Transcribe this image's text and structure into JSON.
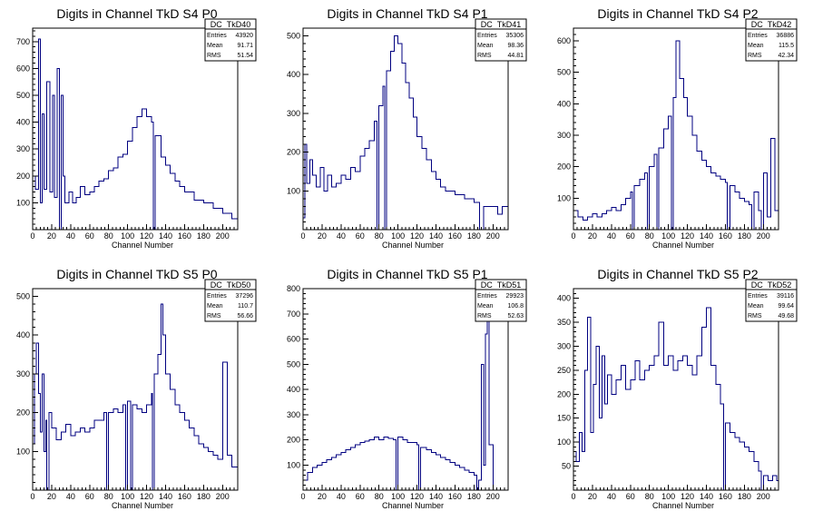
{
  "chart_data": [
    {
      "type": "histogram",
      "title": "Digits in Channel TkD S4 P0",
      "xlabel": "Channel Number",
      "xlim": [
        0,
        216
      ],
      "ylim": [
        0,
        750
      ],
      "x_ticks": [
        0,
        20,
        40,
        60,
        80,
        100,
        120,
        140,
        160,
        180,
        200
      ],
      "y_ticks": [
        100,
        200,
        300,
        400,
        500,
        600,
        700
      ],
      "stats": {
        "name": "DC_TkD40",
        "entries_label": "Entries",
        "entries": "43920",
        "mean_label": "Mean",
        "mean": "91.71",
        "rms_label": "RMS",
        "rms": "51.54"
      },
      "color": "#000080",
      "points": [
        [
          0,
          200
        ],
        [
          3,
          150
        ],
        [
          6,
          710
        ],
        [
          8,
          100
        ],
        [
          10,
          430
        ],
        [
          12,
          150
        ],
        [
          15,
          550
        ],
        [
          18,
          140
        ],
        [
          21,
          500
        ],
        [
          23,
          120
        ],
        [
          26,
          600
        ],
        [
          28,
          0
        ],
        [
          30,
          500
        ],
        [
          32,
          200
        ],
        [
          34,
          100
        ],
        [
          38,
          140
        ],
        [
          42,
          100
        ],
        [
          46,
          120
        ],
        [
          50,
          160
        ],
        [
          55,
          130
        ],
        [
          60,
          140
        ],
        [
          65,
          160
        ],
        [
          70,
          180
        ],
        [
          75,
          190
        ],
        [
          80,
          220
        ],
        [
          85,
          230
        ],
        [
          90,
          270
        ],
        [
          95,
          280
        ],
        [
          100,
          330
        ],
        [
          105,
          380
        ],
        [
          110,
          420
        ],
        [
          115,
          450
        ],
        [
          120,
          420
        ],
        [
          125,
          400
        ],
        [
          127,
          0
        ],
        [
          129,
          350
        ],
        [
          135,
          270
        ],
        [
          140,
          240
        ],
        [
          145,
          210
        ],
        [
          150,
          180
        ],
        [
          155,
          160
        ],
        [
          160,
          140
        ],
        [
          170,
          110
        ],
        [
          180,
          100
        ],
        [
          190,
          80
        ],
        [
          200,
          60
        ],
        [
          210,
          40
        ],
        [
          216,
          50
        ]
      ]
    },
    {
      "type": "histogram",
      "title": "Digits in Channel TkD S4 P1",
      "xlabel": "Channel Number",
      "xlim": [
        0,
        216
      ],
      "ylim": [
        0,
        520
      ],
      "x_ticks": [
        0,
        20,
        40,
        60,
        80,
        100,
        120,
        140,
        160,
        180,
        200
      ],
      "y_ticks": [
        100,
        200,
        300,
        400,
        500
      ],
      "stats": {
        "name": "DC_TkD41",
        "entries_label": "Entries",
        "entries": "35306",
        "mean_label": "Mean",
        "mean": "98.36",
        "rms_label": "RMS",
        "rms": "44.81"
      },
      "color": "#000080",
      "points": [
        [
          0,
          30
        ],
        [
          2,
          220
        ],
        [
          4,
          120
        ],
        [
          7,
          180
        ],
        [
          10,
          140
        ],
        [
          14,
          110
        ],
        [
          18,
          160
        ],
        [
          22,
          100
        ],
        [
          26,
          140
        ],
        [
          30,
          110
        ],
        [
          35,
          120
        ],
        [
          40,
          140
        ],
        [
          45,
          130
        ],
        [
          50,
          160
        ],
        [
          55,
          150
        ],
        [
          60,
          190
        ],
        [
          65,
          210
        ],
        [
          70,
          230
        ],
        [
          75,
          280
        ],
        [
          78,
          0
        ],
        [
          80,
          320
        ],
        [
          84,
          370
        ],
        [
          86,
          0
        ],
        [
          88,
          410
        ],
        [
          92,
          460
        ],
        [
          96,
          500
        ],
        [
          100,
          480
        ],
        [
          104,
          430
        ],
        [
          108,
          380
        ],
        [
          112,
          340
        ],
        [
          116,
          290
        ],
        [
          120,
          240
        ],
        [
          125,
          210
        ],
        [
          130,
          180
        ],
        [
          135,
          150
        ],
        [
          140,
          130
        ],
        [
          145,
          110
        ],
        [
          150,
          100
        ],
        [
          160,
          90
        ],
        [
          170,
          80
        ],
        [
          180,
          70
        ],
        [
          186,
          0
        ],
        [
          190,
          60
        ],
        [
          200,
          60
        ],
        [
          205,
          40
        ],
        [
          210,
          60
        ],
        [
          216,
          50
        ]
      ]
    },
    {
      "type": "histogram",
      "title": "Digits in Channel TkD S4 P2",
      "xlabel": "Channel Number",
      "xlim": [
        0,
        216
      ],
      "ylim": [
        0,
        640
      ],
      "x_ticks": [
        0,
        20,
        40,
        60,
        80,
        100,
        120,
        140,
        160,
        180,
        200
      ],
      "y_ticks": [
        100,
        200,
        300,
        400,
        500,
        600
      ],
      "stats": {
        "name": "DC_TkD42",
        "entries_label": "Entries",
        "entries": "36886",
        "mean_label": "Mean",
        "mean": "115.5",
        "rms_label": "RMS",
        "rms": "42.34"
      },
      "color": "#000080",
      "points": [
        [
          0,
          60
        ],
        [
          5,
          40
        ],
        [
          10,
          30
        ],
        [
          15,
          40
        ],
        [
          20,
          50
        ],
        [
          25,
          40
        ],
        [
          30,
          50
        ],
        [
          35,
          60
        ],
        [
          40,
          70
        ],
        [
          45,
          60
        ],
        [
          50,
          80
        ],
        [
          55,
          100
        ],
        [
          60,
          120
        ],
        [
          62,
          0
        ],
        [
          64,
          140
        ],
        [
          70,
          160
        ],
        [
          75,
          180
        ],
        [
          78,
          0
        ],
        [
          80,
          200
        ],
        [
          85,
          240
        ],
        [
          88,
          0
        ],
        [
          90,
          260
        ],
        [
          95,
          320
        ],
        [
          100,
          360
        ],
        [
          103,
          0
        ],
        [
          105,
          420
        ],
        [
          108,
          600
        ],
        [
          112,
          480
        ],
        [
          116,
          420
        ],
        [
          120,
          360
        ],
        [
          125,
          300
        ],
        [
          130,
          250
        ],
        [
          135,
          220
        ],
        [
          140,
          200
        ],
        [
          145,
          180
        ],
        [
          150,
          170
        ],
        [
          155,
          160
        ],
        [
          160,
          150
        ],
        [
          162,
          0
        ],
        [
          165,
          140
        ],
        [
          170,
          120
        ],
        [
          175,
          100
        ],
        [
          180,
          90
        ],
        [
          185,
          80
        ],
        [
          188,
          0
        ],
        [
          190,
          120
        ],
        [
          195,
          60
        ],
        [
          198,
          0
        ],
        [
          200,
          180
        ],
        [
          204,
          40
        ],
        [
          208,
          290
        ],
        [
          212,
          60
        ],
        [
          216,
          40
        ]
      ]
    },
    {
      "type": "histogram",
      "title": "Digits in Channel TkD S5 P0",
      "xlabel": "Channel Number",
      "xlim": [
        0,
        216
      ],
      "ylim": [
        0,
        520
      ],
      "x_ticks": [
        0,
        20,
        40,
        60,
        80,
        100,
        120,
        140,
        160,
        180,
        200
      ],
      "y_ticks": [
        100,
        200,
        300,
        400,
        500
      ],
      "stats": {
        "name": "DC_TkD50",
        "entries_label": "Entries",
        "entries": "37296",
        "mean_label": "Mean",
        "mean": "110.7",
        "rms_label": "RMS",
        "rms": "56.66"
      },
      "color": "#000080",
      "points": [
        [
          0,
          120
        ],
        [
          2,
          300
        ],
        [
          4,
          380
        ],
        [
          6,
          250
        ],
        [
          8,
          150
        ],
        [
          10,
          300
        ],
        [
          12,
          100
        ],
        [
          14,
          180
        ],
        [
          15,
          0
        ],
        [
          17,
          200
        ],
        [
          20,
          160
        ],
        [
          25,
          130
        ],
        [
          30,
          150
        ],
        [
          35,
          170
        ],
        [
          40,
          140
        ],
        [
          45,
          150
        ],
        [
          50,
          160
        ],
        [
          55,
          150
        ],
        [
          60,
          160
        ],
        [
          65,
          180
        ],
        [
          70,
          180
        ],
        [
          75,
          200
        ],
        [
          78,
          0
        ],
        [
          80,
          200
        ],
        [
          85,
          210
        ],
        [
          90,
          200
        ],
        [
          95,
          220
        ],
        [
          98,
          0
        ],
        [
          100,
          230
        ],
        [
          103,
          0
        ],
        [
          105,
          220
        ],
        [
          110,
          210
        ],
        [
          115,
          200
        ],
        [
          120,
          220
        ],
        [
          125,
          250
        ],
        [
          126,
          0
        ],
        [
          128,
          300
        ],
        [
          132,
          350
        ],
        [
          135,
          480
        ],
        [
          137,
          400
        ],
        [
          140,
          300
        ],
        [
          145,
          260
        ],
        [
          150,
          220
        ],
        [
          155,
          200
        ],
        [
          160,
          180
        ],
        [
          165,
          160
        ],
        [
          170,
          140
        ],
        [
          175,
          120
        ],
        [
          180,
          110
        ],
        [
          185,
          100
        ],
        [
          190,
          90
        ],
        [
          195,
          80
        ],
        [
          200,
          330
        ],
        [
          205,
          90
        ],
        [
          210,
          60
        ],
        [
          216,
          100
        ]
      ]
    },
    {
      "type": "histogram",
      "title": "Digits in Channel TkD S5 P1",
      "xlabel": "Channel Number",
      "xlim": [
        0,
        216
      ],
      "ylim": [
        0,
        800
      ],
      "x_ticks": [
        0,
        20,
        40,
        60,
        80,
        100,
        120,
        140,
        160,
        180,
        200
      ],
      "y_ticks": [
        100,
        200,
        300,
        400,
        500,
        600,
        700,
        800
      ],
      "stats": {
        "name": "DC_TkD51",
        "entries_label": "Entries",
        "entries": "29923",
        "mean_label": "Mean",
        "mean": "106.8",
        "rms_label": "RMS",
        "rms": "52.63"
      },
      "color": "#000080",
      "points": [
        [
          0,
          40
        ],
        [
          5,
          70
        ],
        [
          10,
          90
        ],
        [
          15,
          100
        ],
        [
          20,
          110
        ],
        [
          25,
          120
        ],
        [
          30,
          130
        ],
        [
          35,
          140
        ],
        [
          40,
          150
        ],
        [
          45,
          160
        ],
        [
          50,
          170
        ],
        [
          55,
          180
        ],
        [
          60,
          190
        ],
        [
          65,
          195
        ],
        [
          70,
          200
        ],
        [
          75,
          210
        ],
        [
          80,
          200
        ],
        [
          85,
          210
        ],
        [
          90,
          205
        ],
        [
          95,
          200
        ],
        [
          98,
          0
        ],
        [
          100,
          210
        ],
        [
          105,
          200
        ],
        [
          110,
          190
        ],
        [
          115,
          190
        ],
        [
          120,
          180
        ],
        [
          122,
          0
        ],
        [
          124,
          170
        ],
        [
          130,
          160
        ],
        [
          135,
          150
        ],
        [
          140,
          140
        ],
        [
          145,
          130
        ],
        [
          150,
          120
        ],
        [
          155,
          110
        ],
        [
          160,
          100
        ],
        [
          165,
          90
        ],
        [
          170,
          80
        ],
        [
          175,
          70
        ],
        [
          180,
          60
        ],
        [
          183,
          0
        ],
        [
          185,
          40
        ],
        [
          188,
          500
        ],
        [
          190,
          100
        ],
        [
          192,
          620
        ],
        [
          194,
          780
        ],
        [
          196,
          180
        ],
        [
          200,
          0
        ],
        [
          216,
          0
        ]
      ]
    },
    {
      "type": "histogram",
      "title": "Digits in Channel TkD S5 P2",
      "xlabel": "Channel Number",
      "xlim": [
        0,
        216
      ],
      "ylim": [
        0,
        420
      ],
      "x_ticks": [
        0,
        20,
        40,
        60,
        80,
        100,
        120,
        140,
        160,
        180,
        200
      ],
      "y_ticks": [
        50,
        100,
        150,
        200,
        250,
        300,
        350,
        400
      ],
      "stats": {
        "name": "DC_TkD52",
        "entries_label": "Entries",
        "entries": "39116",
        "mean_label": "Mean",
        "mean": "99.64",
        "rms_label": "RMS",
        "rms": "49.68"
      },
      "color": "#000080",
      "points": [
        [
          0,
          80
        ],
        [
          3,
          60
        ],
        [
          6,
          120
        ],
        [
          9,
          80
        ],
        [
          12,
          250
        ],
        [
          15,
          360
        ],
        [
          18,
          120
        ],
        [
          21,
          220
        ],
        [
          24,
          300
        ],
        [
          27,
          150
        ],
        [
          30,
          280
        ],
        [
          33,
          180
        ],
        [
          36,
          240
        ],
        [
          40,
          200
        ],
        [
          45,
          230
        ],
        [
          50,
          260
        ],
        [
          55,
          210
        ],
        [
          60,
          230
        ],
        [
          65,
          270
        ],
        [
          70,
          230
        ],
        [
          75,
          250
        ],
        [
          80,
          260
        ],
        [
          85,
          280
        ],
        [
          90,
          350
        ],
        [
          95,
          260
        ],
        [
          100,
          280
        ],
        [
          105,
          250
        ],
        [
          110,
          270
        ],
        [
          115,
          280
        ],
        [
          120,
          260
        ],
        [
          125,
          240
        ],
        [
          130,
          280
        ],
        [
          135,
          340
        ],
        [
          140,
          380
        ],
        [
          145,
          260
        ],
        [
          150,
          220
        ],
        [
          155,
          180
        ],
        [
          158,
          0
        ],
        [
          160,
          140
        ],
        [
          165,
          120
        ],
        [
          170,
          110
        ],
        [
          175,
          100
        ],
        [
          180,
          90
        ],
        [
          185,
          80
        ],
        [
          190,
          60
        ],
        [
          195,
          40
        ],
        [
          198,
          0
        ],
        [
          200,
          30
        ],
        [
          205,
          20
        ],
        [
          210,
          30
        ],
        [
          214,
          20
        ]
      ]
    }
  ]
}
